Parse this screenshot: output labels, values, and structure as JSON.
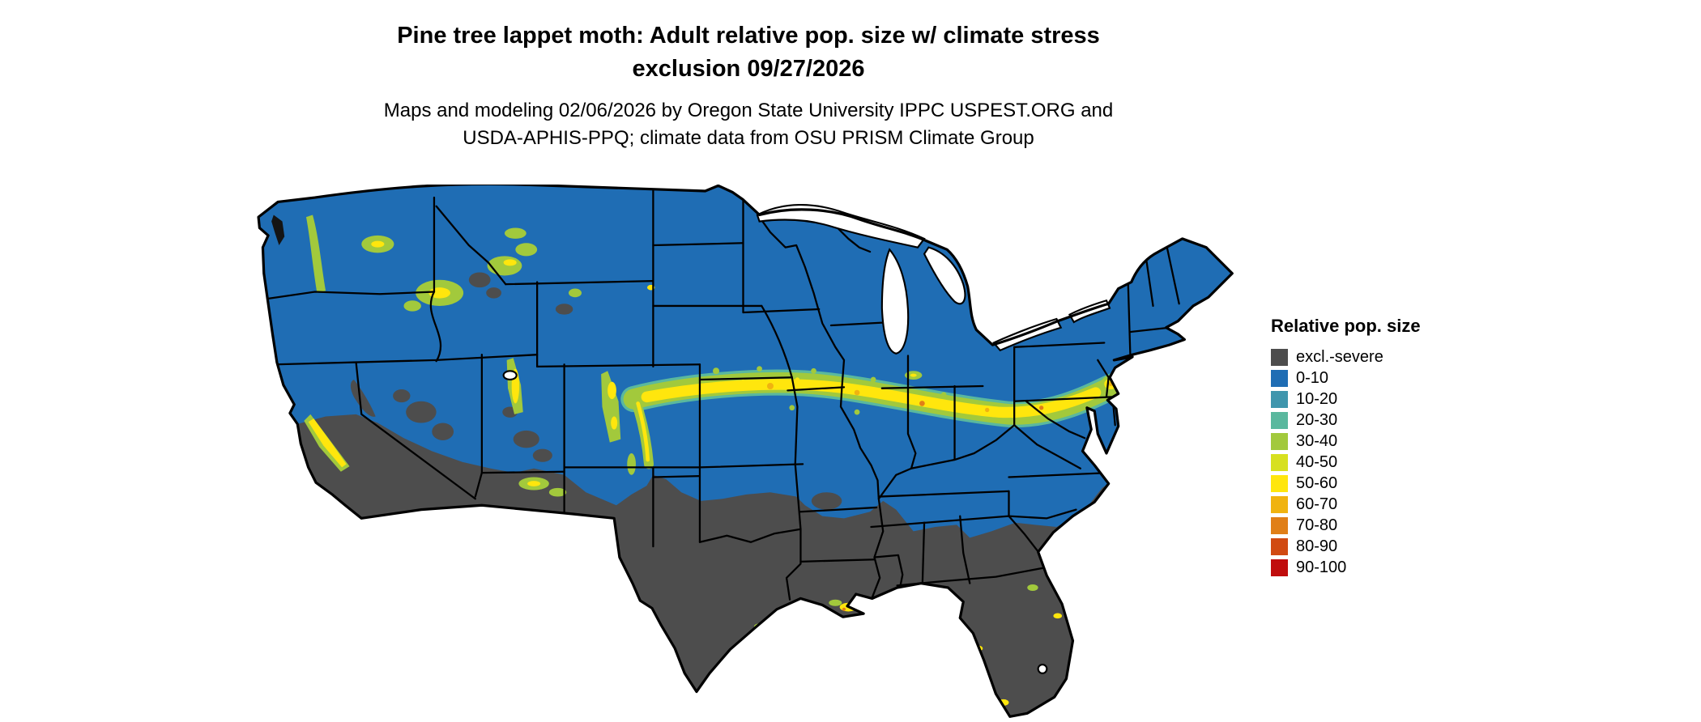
{
  "header": {
    "title_line1": "Pine tree lappet moth: Adult relative pop. size w/ climate stress",
    "title_line2": "exclusion 09/27/2026",
    "subtitle_line1": "Maps and modeling 02/06/2026 by Oregon State University IPPC USPEST.ORG and",
    "subtitle_line2": "USDA-APHIS-PPQ; climate data from OSU PRISM Climate Group"
  },
  "legend": {
    "title": "Relative pop. size",
    "items": [
      {
        "label": "excl.-severe",
        "color": "#4d4d4d"
      },
      {
        "label": "0-10",
        "color": "#1f6db4"
      },
      {
        "label": "10-20",
        "color": "#3f96ad"
      },
      {
        "label": "20-30",
        "color": "#5ab89e"
      },
      {
        "label": "30-40",
        "color": "#a2c93c"
      },
      {
        "label": "40-50",
        "color": "#d7e01f"
      },
      {
        "label": "50-60",
        "color": "#ffe60d"
      },
      {
        "label": "60-70",
        "color": "#f0b310"
      },
      {
        "label": "70-80",
        "color": "#e07f18"
      },
      {
        "label": "80-90",
        "color": "#d14a12"
      },
      {
        "label": "90-100",
        "color": "#c00d0d"
      }
    ]
  },
  "map": {
    "border_color": "#000000",
    "water_color": "#ffffff",
    "sound_color": "#141414"
  }
}
